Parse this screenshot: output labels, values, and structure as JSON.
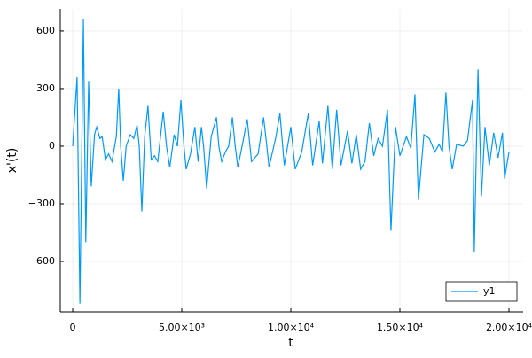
{
  "chart_data": {
    "type": "line",
    "xlabel": "t",
    "ylabel": "x'(t)",
    "x": [
      0,
      200,
      330,
      490,
      600,
      730,
      850,
      1000,
      1100,
      1250,
      1350,
      1500,
      1650,
      1800,
      2000,
      2110,
      2200,
      2320,
      2450,
      2640,
      2800,
      2950,
      3050,
      3170,
      3300,
      3450,
      3600,
      3750,
      3900,
      4150,
      4300,
      4450,
      4650,
      4800,
      4960,
      5100,
      5200,
      5400,
      5600,
      5750,
      5900,
      6000,
      6140,
      6350,
      6590,
      6700,
      6830,
      7000,
      7150,
      7320,
      7450,
      7570,
      7800,
      8000,
      8200,
      8500,
      8750,
      8900,
      9000,
      9300,
      9500,
      9700,
      10000,
      10200,
      10500,
      10800,
      11000,
      11300,
      11450,
      11700,
      11900,
      12100,
      12300,
      12600,
      12800,
      13000,
      13200,
      13400,
      13600,
      13800,
      14000,
      14200,
      14430,
      14590,
      14800,
      15000,
      15300,
      15500,
      15690,
      15850,
      16100,
      16350,
      16600,
      16800,
      16950,
      17110,
      17250,
      17400,
      17600,
      17900,
      18100,
      18330,
      18410,
      18580,
      18740,
      18900,
      19100,
      19300,
      19500,
      19700,
      19800,
      20000
    ],
    "series": [
      {
        "name": "y1",
        "color": "#009af9",
        "values": [
          0,
          360,
          -820,
          660,
          -500,
          340,
          -210,
          60,
          100,
          40,
          50,
          -70,
          -40,
          -80,
          50,
          300,
          0,
          -180,
          0,
          60,
          40,
          110,
          0,
          -340,
          50,
          210,
          -70,
          -50,
          -80,
          180,
          0,
          -110,
          60,
          0,
          240,
          0,
          -120,
          -40,
          100,
          -80,
          100,
          0,
          -220,
          50,
          150,
          0,
          -80,
          -30,
          0,
          150,
          0,
          -110,
          20,
          140,
          -80,
          -40,
          150,
          0,
          -110,
          40,
          170,
          -100,
          100,
          -120,
          -30,
          170,
          -100,
          130,
          -90,
          210,
          -120,
          190,
          -100,
          80,
          -90,
          60,
          -120,
          -80,
          120,
          -50,
          40,
          0,
          190,
          -440,
          100,
          -50,
          50,
          -10,
          270,
          -280,
          60,
          40,
          -30,
          10,
          -30,
          280,
          0,
          -120,
          10,
          0,
          30,
          240,
          -550,
          400,
          -260,
          100,
          -100,
          70,
          -60,
          70,
          -170,
          -30
        ]
      }
    ],
    "xlim": [
      -570,
      20650
    ],
    "ylim": [
      -863,
      715
    ],
    "xticks": [
      0,
      {
        "value": 5000,
        "label": "5.00×10³"
      },
      {
        "value": 10000,
        "label": "1.00×10⁴"
      },
      {
        "value": 15000,
        "label": "1.50×10⁴"
      },
      {
        "value": 20000,
        "label": "2.00×10⁴"
      }
    ],
    "yticks": [
      {
        "value": -600,
        "label": "−600"
      },
      {
        "value": -300,
        "label": "−300"
      },
      0,
      300,
      600
    ],
    "grid": true,
    "legend": "bottom-right"
  }
}
